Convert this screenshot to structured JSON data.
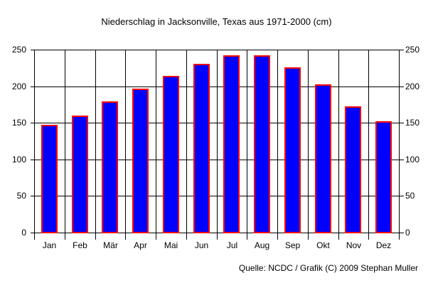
{
  "chart_data": {
    "type": "bar",
    "title": "Niederschlag in Jacksonville, Texas aus 1971-2000 (cm)",
    "source": "Quelle: NCDC / Grafik (C) 2009 Stephan Muller",
    "categories": [
      "Jan",
      "Feb",
      "Mär",
      "Apr",
      "Mai",
      "Jun",
      "Jul",
      "Aug",
      "Sep",
      "Okt",
      "Nov",
      "Dez"
    ],
    "values": [
      147,
      160,
      179,
      197,
      214,
      231,
      242,
      242,
      226,
      203,
      172,
      152
    ],
    "xlabel": "",
    "ylabel": "",
    "ylim": [
      0,
      250
    ],
    "yticks": [
      0,
      50,
      100,
      150,
      200,
      250
    ],
    "grid": true,
    "dual_y_axis": true,
    "legend": false,
    "colors": {
      "bar_fill": "#0000ff",
      "bar_border": "#ff0000",
      "axis": "#000000",
      "background": "#ffffff",
      "text": "#000000"
    }
  }
}
